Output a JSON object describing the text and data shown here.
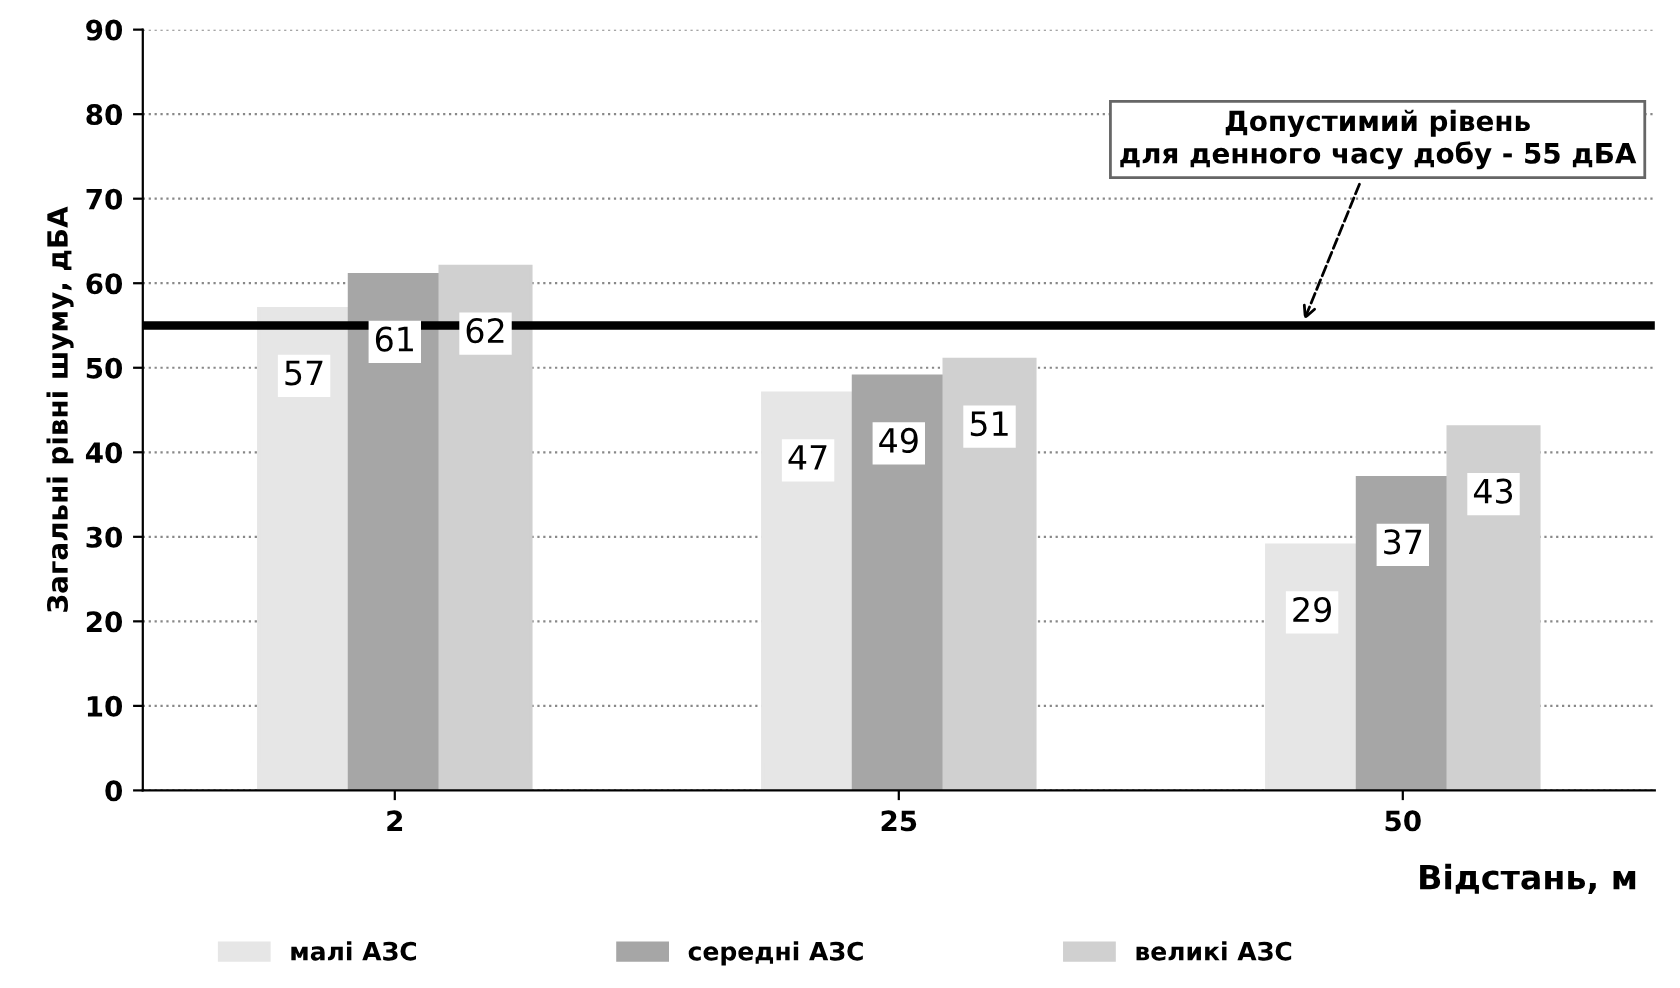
{
  "chart_data": {
    "type": "bar",
    "xlabel": "Відстань, м",
    "ylabel": "Загальні рівні шуму, дБА",
    "categories": [
      "2",
      "25",
      "50"
    ],
    "series": [
      {
        "name": "малі АЗС",
        "color": "#e6e6e6",
        "values": [
          57,
          47,
          29
        ]
      },
      {
        "name": "середні АЗС",
        "color": "#a6a6a6",
        "values": [
          61,
          49,
          37
        ]
      },
      {
        "name": "великі АЗС",
        "color": "#d0d0d0",
        "values": [
          62,
          51,
          43
        ]
      }
    ],
    "ylim": [
      0,
      90
    ],
    "yticks": [
      0,
      10,
      20,
      30,
      40,
      50,
      60,
      70,
      80,
      90
    ],
    "grid": "y",
    "legend": "bottom",
    "data_labels": true,
    "ref_lines": [
      {
        "axis": "y",
        "value": 55,
        "label": "Допустимий рівень\nдля денного часу добу - 55 дБА",
        "color": "#000000",
        "line_style": "solid"
      }
    ]
  }
}
